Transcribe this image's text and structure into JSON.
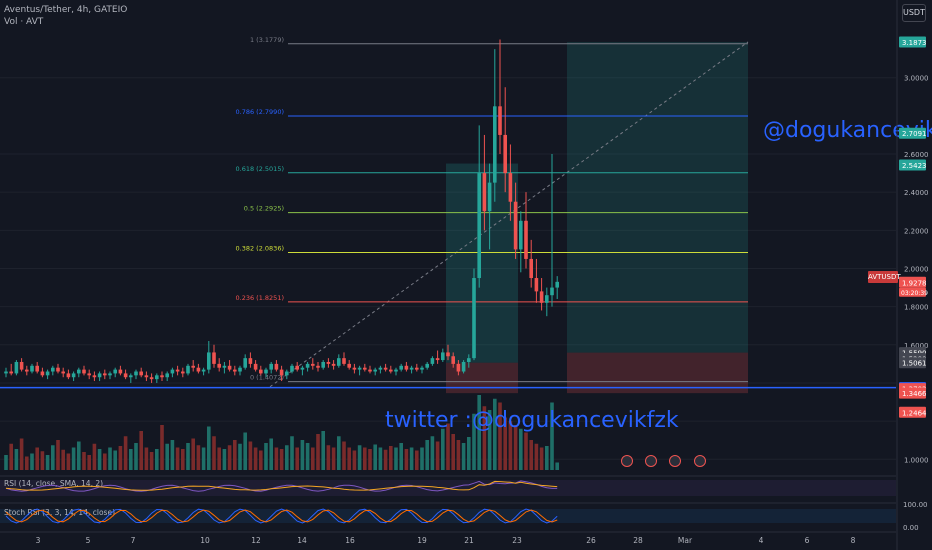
{
  "header": {
    "title": "Aventus/Tether, 4h, GATEIO",
    "volume_label": "Vol · AVT",
    "currency_button": "USDT"
  },
  "symbol_tag": "AVTUSDT",
  "countdown": "03:20:39",
  "watermarks": {
    "handle": "@dogukancevik",
    "twitter": "twitter :@dogukancevikfzk"
  },
  "colors": {
    "background": "#131722",
    "up": "#26a69a",
    "down": "#ef5350",
    "vol_up": "#1f6f68",
    "vol_down": "#7a2b2b",
    "watermark": "#2962ff",
    "support_line": "#2962ff"
  },
  "chart_data": {
    "type": "candlestick",
    "price_axis": {
      "ticks": [
        1.0,
        1.2,
        1.4,
        1.6,
        1.8,
        2.0,
        2.2,
        2.4,
        2.6,
        3.0
      ],
      "tick_labels": [
        "1.0000",
        "",
        "",
        "1.6000",
        "1.8000",
        "2.0000",
        "2.2000",
        "2.4000",
        "2.6000",
        "3.0000"
      ],
      "range": [
        0.97,
        3.25
      ]
    },
    "time_axis": {
      "labels": [
        "3",
        "5",
        "7",
        "10",
        "12",
        "14",
        "16",
        "19",
        "21",
        "23",
        "26",
        "28",
        "Mar",
        "4",
        "6",
        "8"
      ]
    },
    "price_labels": [
      {
        "value": 3.1873,
        "text": "3.1873",
        "color": "#26a69a"
      },
      {
        "value": 2.7091,
        "text": "2.7091",
        "color": "#26a69a"
      },
      {
        "value": 2.5423,
        "text": "2.5423",
        "color": "#26a69a"
      },
      {
        "value": 1.9278,
        "text": "1.9278",
        "color": "#ef5350"
      },
      {
        "value": 1.559,
        "text": "1.5590",
        "color": "#434651"
      },
      {
        "value": 1.528,
        "text": "1.5280",
        "color": "#434651"
      },
      {
        "value": 1.5061,
        "text": "1.5061",
        "color": "#434651"
      },
      {
        "value": 1.3754,
        "text": "1.3754",
        "color": "#2962ff"
      },
      {
        "value": 1.3702,
        "text": "1.3702",
        "color": "#ef5350"
      },
      {
        "value": 1.3466,
        "text": "1.3466",
        "color": "#ef5350"
      },
      {
        "value": 1.2464,
        "text": "1.2464",
        "color": "#ef5350"
      }
    ],
    "fibonacci": [
      {
        "level": "1 (3.1779)",
        "price": 3.1779,
        "color": "#787b86"
      },
      {
        "level": "0.786 (2.7990)",
        "price": 2.799,
        "color": "#2962ff"
      },
      {
        "level": "0.618 (2.5015)",
        "price": 2.5015,
        "color": "#26a69a"
      },
      {
        "level": "0.5 (2.2925)",
        "price": 2.2925,
        "color": "#8bc34a"
      },
      {
        "level": "0.382 (2.0836)",
        "price": 2.0836,
        "color": "#cddc39"
      },
      {
        "level": "0.236 (1.8251)",
        "price": 1.8251,
        "color": "#ef5350"
      },
      {
        "level": "0 (1.4072)",
        "price": 1.4072,
        "color": "#787b86"
      }
    ],
    "candles": [
      [
        1.45,
        1.48,
        1.43,
        1.46
      ],
      [
        1.46,
        1.5,
        1.44,
        1.45
      ],
      [
        1.45,
        1.52,
        1.44,
        1.51
      ],
      [
        1.51,
        1.53,
        1.46,
        1.47
      ],
      [
        1.47,
        1.49,
        1.44,
        1.46
      ],
      [
        1.46,
        1.5,
        1.45,
        1.49
      ],
      [
        1.49,
        1.51,
        1.45,
        1.46
      ],
      [
        1.46,
        1.48,
        1.43,
        1.44
      ],
      [
        1.44,
        1.47,
        1.42,
        1.46
      ],
      [
        1.46,
        1.49,
        1.44,
        1.48
      ],
      [
        1.48,
        1.5,
        1.45,
        1.46
      ],
      [
        1.46,
        1.48,
        1.43,
        1.45
      ],
      [
        1.45,
        1.47,
        1.42,
        1.43
      ],
      [
        1.43,
        1.46,
        1.41,
        1.45
      ],
      [
        1.45,
        1.48,
        1.43,
        1.47
      ],
      [
        1.47,
        1.49,
        1.44,
        1.45
      ],
      [
        1.45,
        1.47,
        1.42,
        1.44
      ],
      [
        1.44,
        1.46,
        1.41,
        1.43
      ],
      [
        1.43,
        1.46,
        1.41,
        1.45
      ],
      [
        1.45,
        1.47,
        1.42,
        1.44
      ],
      [
        1.44,
        1.46,
        1.42,
        1.45
      ],
      [
        1.45,
        1.48,
        1.43,
        1.47
      ],
      [
        1.47,
        1.49,
        1.44,
        1.45
      ],
      [
        1.45,
        1.47,
        1.42,
        1.43
      ],
      [
        1.43,
        1.45,
        1.4,
        1.44
      ],
      [
        1.44,
        1.47,
        1.42,
        1.46
      ],
      [
        1.46,
        1.48,
        1.43,
        1.44
      ],
      [
        1.44,
        1.46,
        1.41,
        1.43
      ],
      [
        1.43,
        1.45,
        1.4,
        1.42
      ],
      [
        1.42,
        1.45,
        1.4,
        1.44
      ],
      [
        1.44,
        1.46,
        1.41,
        1.43
      ],
      [
        1.43,
        1.46,
        1.41,
        1.45
      ],
      [
        1.45,
        1.48,
        1.43,
        1.47
      ],
      [
        1.47,
        1.49,
        1.44,
        1.46
      ],
      [
        1.46,
        1.48,
        1.43,
        1.45
      ],
      [
        1.45,
        1.5,
        1.44,
        1.49
      ],
      [
        1.49,
        1.52,
        1.46,
        1.48
      ],
      [
        1.48,
        1.5,
        1.45,
        1.46
      ],
      [
        1.46,
        1.48,
        1.44,
        1.47
      ],
      [
        1.47,
        1.62,
        1.45,
        1.56
      ],
      [
        1.56,
        1.6,
        1.48,
        1.5
      ],
      [
        1.5,
        1.53,
        1.46,
        1.48
      ],
      [
        1.48,
        1.51,
        1.45,
        1.49
      ],
      [
        1.49,
        1.52,
        1.46,
        1.47
      ],
      [
        1.47,
        1.49,
        1.44,
        1.46
      ],
      [
        1.46,
        1.49,
        1.44,
        1.48
      ],
      [
        1.48,
        1.55,
        1.47,
        1.53
      ],
      [
        1.53,
        1.56,
        1.48,
        1.5
      ],
      [
        1.5,
        1.52,
        1.46,
        1.47
      ],
      [
        1.47,
        1.49,
        1.44,
        1.45
      ],
      [
        1.45,
        1.48,
        1.43,
        1.47
      ],
      [
        1.47,
        1.51,
        1.45,
        1.5
      ],
      [
        1.5,
        1.52,
        1.46,
        1.47
      ],
      [
        1.47,
        1.49,
        1.41,
        1.44
      ],
      [
        1.44,
        1.47,
        1.42,
        1.46
      ],
      [
        1.46,
        1.5,
        1.45,
        1.49
      ],
      [
        1.49,
        1.51,
        1.46,
        1.47
      ],
      [
        1.47,
        1.49,
        1.44,
        1.48
      ],
      [
        1.48,
        1.51,
        1.46,
        1.5
      ],
      [
        1.5,
        1.53,
        1.47,
        1.49
      ],
      [
        1.49,
        1.51,
        1.46,
        1.48
      ],
      [
        1.48,
        1.52,
        1.47,
        1.51
      ],
      [
        1.51,
        1.53,
        1.48,
        1.5
      ],
      [
        1.5,
        1.52,
        1.47,
        1.49
      ],
      [
        1.49,
        1.55,
        1.48,
        1.53
      ],
      [
        1.53,
        1.56,
        1.49,
        1.5
      ],
      [
        1.5,
        1.52,
        1.47,
        1.48
      ],
      [
        1.48,
        1.5,
        1.45,
        1.47
      ],
      [
        1.47,
        1.49,
        1.44,
        1.48
      ],
      [
        1.48,
        1.5,
        1.46,
        1.47
      ],
      [
        1.47,
        1.49,
        1.45,
        1.46
      ],
      [
        1.46,
        1.48,
        1.44,
        1.47
      ],
      [
        1.47,
        1.49,
        1.45,
        1.48
      ],
      [
        1.48,
        1.5,
        1.46,
        1.47
      ],
      [
        1.47,
        1.49,
        1.45,
        1.46
      ],
      [
        1.46,
        1.48,
        1.44,
        1.47
      ],
      [
        1.47,
        1.5,
        1.46,
        1.49
      ],
      [
        1.49,
        1.51,
        1.46,
        1.47
      ],
      [
        1.47,
        1.49,
        1.45,
        1.48
      ],
      [
        1.48,
        1.5,
        1.46,
        1.47
      ],
      [
        1.47,
        1.49,
        1.45,
        1.48
      ],
      [
        1.48,
        1.51,
        1.47,
        1.5
      ],
      [
        1.5,
        1.54,
        1.49,
        1.53
      ],
      [
        1.53,
        1.57,
        1.5,
        1.52
      ],
      [
        1.52,
        1.58,
        1.51,
        1.56
      ],
      [
        1.56,
        1.6,
        1.52,
        1.54
      ],
      [
        1.54,
        1.56,
        1.48,
        1.5
      ],
      [
        1.5,
        1.52,
        1.44,
        1.46
      ],
      [
        1.46,
        1.52,
        1.45,
        1.51
      ],
      [
        1.51,
        1.55,
        1.48,
        1.53
      ],
      [
        1.53,
        2.0,
        1.52,
        1.95
      ],
      [
        1.95,
        2.75,
        1.9,
        2.5
      ],
      [
        2.5,
        2.7,
        2.2,
        2.3
      ],
      [
        2.3,
        2.55,
        2.1,
        2.45
      ],
      [
        2.45,
        3.15,
        2.35,
        2.85
      ],
      [
        2.85,
        3.2,
        2.6,
        2.7
      ],
      [
        2.7,
        2.95,
        2.4,
        2.5
      ],
      [
        2.5,
        2.65,
        2.25,
        2.35
      ],
      [
        2.35,
        2.45,
        2.05,
        2.1
      ],
      [
        2.1,
        2.3,
        1.98,
        2.25
      ],
      [
        2.25,
        2.4,
        2.0,
        2.05
      ],
      [
        2.05,
        2.15,
        1.9,
        1.95
      ],
      [
        1.95,
        2.05,
        1.82,
        1.88
      ],
      [
        1.88,
        1.95,
        1.78,
        1.82
      ],
      [
        1.82,
        1.9,
        1.75,
        1.86
      ],
      [
        1.86,
        2.6,
        1.8,
        1.9
      ],
      [
        1.9,
        1.96,
        1.84,
        1.93
      ]
    ],
    "volume": [
      0.2,
      0.35,
      0.28,
      0.42,
      0.18,
      0.22,
      0.3,
      0.25,
      0.2,
      0.33,
      0.4,
      0.27,
      0.22,
      0.3,
      0.38,
      0.24,
      0.2,
      0.35,
      0.28,
      0.22,
      0.3,
      0.26,
      0.32,
      0.45,
      0.28,
      0.36,
      0.52,
      0.3,
      0.24,
      0.28,
      0.6,
      0.35,
      0.4,
      0.3,
      0.28,
      0.36,
      0.42,
      0.33,
      0.3,
      0.58,
      0.45,
      0.3,
      0.28,
      0.33,
      0.4,
      0.35,
      0.5,
      0.38,
      0.3,
      0.26,
      0.36,
      0.42,
      0.3,
      0.28,
      0.33,
      0.45,
      0.3,
      0.4,
      0.36,
      0.3,
      0.48,
      0.52,
      0.33,
      0.3,
      0.45,
      0.38,
      0.3,
      0.26,
      0.33,
      0.3,
      0.28,
      0.34,
      0.3,
      0.27,
      0.32,
      0.3,
      0.36,
      0.28,
      0.3,
      0.26,
      0.3,
      0.4,
      0.45,
      0.38,
      0.55,
      0.62,
      0.48,
      0.4,
      0.36,
      0.44,
      0.75,
      1.0,
      0.85,
      0.8,
      0.95,
      0.9,
      0.7,
      0.65,
      0.6,
      0.55,
      0.5,
      0.4,
      0.35,
      0.3,
      0.32,
      0.9,
      0.1
    ],
    "indicators": [
      {
        "label": "RSI (14, close, SMA, 14, 2)"
      },
      {
        "label": "Stoch RSI (3, 3, 14, 14, close)",
        "ticks": [
          "100.00",
          "0.00"
        ]
      }
    ],
    "trade_zones": [
      {
        "type": "long",
        "entry": 1.5061,
        "target": 3.1873,
        "stop": 1.3466
      }
    ]
  }
}
